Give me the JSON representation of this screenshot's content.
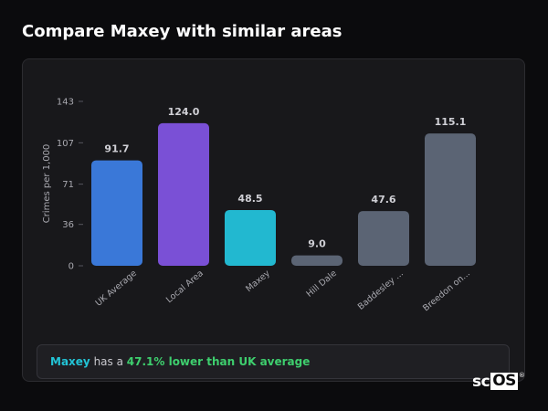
{
  "header": {
    "title": "Compare Maxey with similar areas"
  },
  "chart_data": {
    "type": "bar",
    "ylabel": "Crimes per 1,000",
    "ylim": [
      0,
      143
    ],
    "yticks": [
      0,
      36,
      71,
      107,
      143
    ],
    "categories": [
      "UK Average",
      "Local Area",
      "Maxey",
      "Hill Dale",
      "Baddesley ...",
      "Breedon on..."
    ],
    "values": [
      91.7,
      124.0,
      48.5,
      9.0,
      47.6,
      115.1
    ],
    "value_labels": [
      "91.7",
      "124.0",
      "48.5",
      "9.0",
      "47.6",
      "115.1"
    ],
    "colors": [
      "#3a78d8",
      "#7a50d6",
      "#22b8d0",
      "#5b6474",
      "#5b6474",
      "#5b6474"
    ],
    "grid": false,
    "legend": "none"
  },
  "summary": {
    "area": "Maxey",
    "text_mid": " has a ",
    "stat": "47.1% lower than UK average"
  },
  "brand": {
    "logo_plain": "sc",
    "logo_boxed": "OS",
    "logo_mark": "®"
  }
}
